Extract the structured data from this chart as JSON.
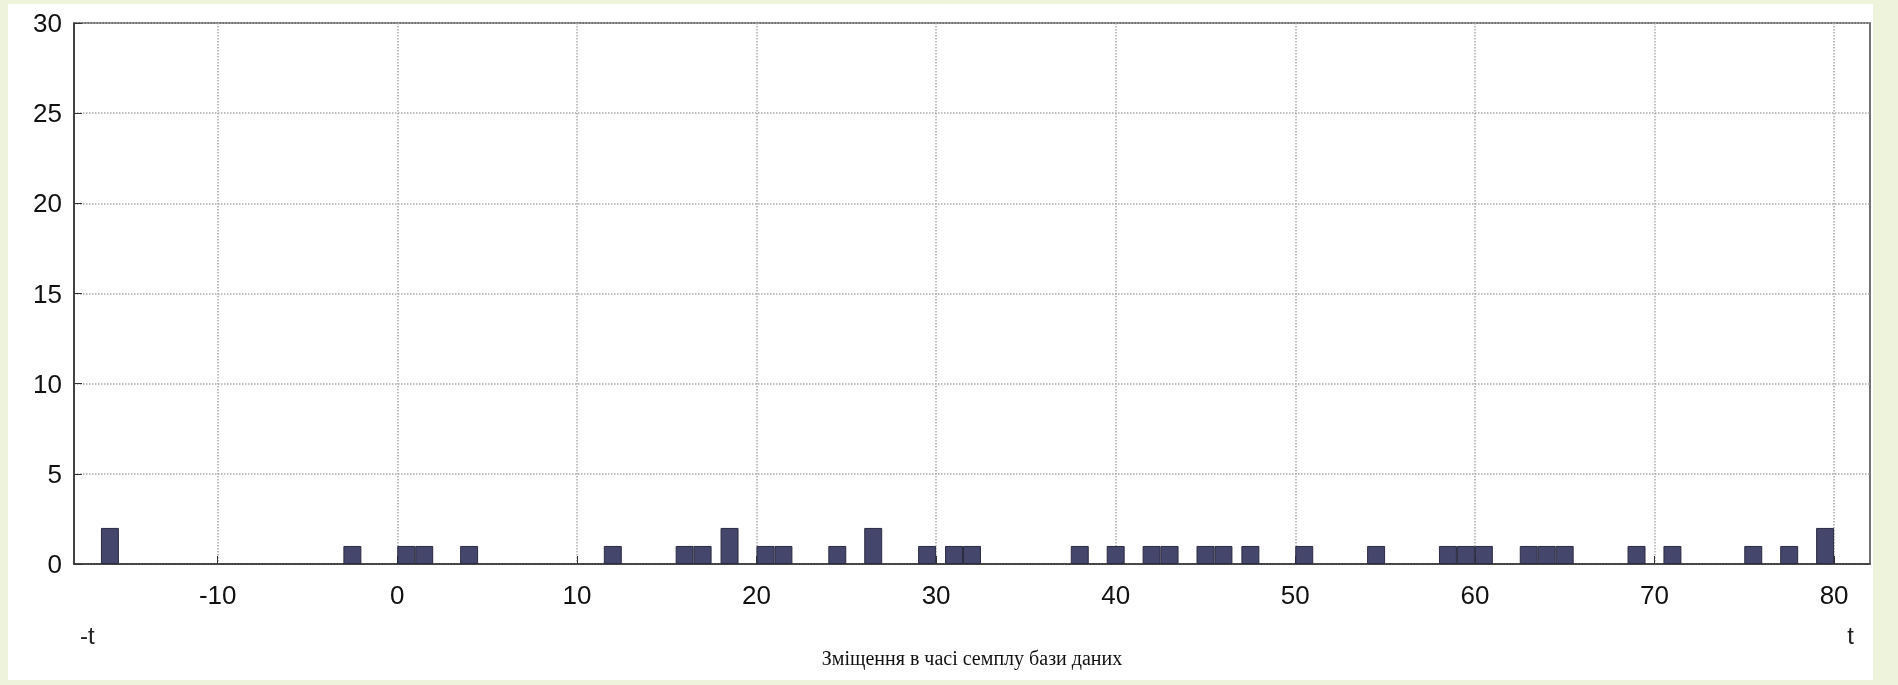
{
  "chart_data": {
    "type": "bar",
    "xlabel": "Зміщення в часі семплу бази даних",
    "x": [
      -16,
      -2.5,
      0.5,
      1.5,
      4,
      12,
      16,
      17,
      18.5,
      20.5,
      21.5,
      24.5,
      26.5,
      29.5,
      31,
      32,
      38,
      40,
      42,
      43,
      45,
      46,
      47.5,
      50.5,
      54.5,
      58.5,
      59.5,
      60.5,
      63,
      64,
      65,
      69,
      71,
      75.5,
      77.5,
      79.5
    ],
    "values": [
      2,
      1,
      1,
      1,
      1,
      1,
      1,
      1,
      2,
      1,
      1,
      1,
      2,
      1,
      1,
      1,
      1,
      1,
      1,
      1,
      1,
      1,
      1,
      1,
      1,
      1,
      1,
      1,
      1,
      1,
      1,
      1,
      1,
      1,
      1,
      2
    ],
    "color": "#45466b",
    "xlim": [
      -18,
      82
    ],
    "xticks": [
      -10,
      0,
      10,
      20,
      30,
      40,
      50,
      60,
      70,
      80
    ],
    "ylim": [
      0,
      30
    ],
    "yticks": [
      0,
      5,
      10,
      15,
      20,
      25,
      30
    ],
    "grid": true,
    "line_style": "dotted",
    "annotations": [
      "-t",
      "t"
    ]
  }
}
